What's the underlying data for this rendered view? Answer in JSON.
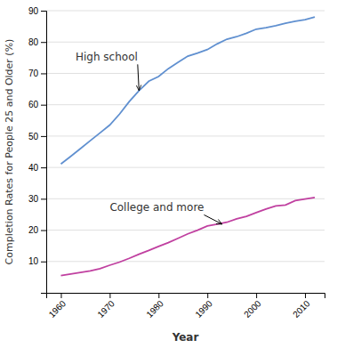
{
  "chart_data": {
    "type": "line",
    "xlabel": "Year",
    "ylabel": "Completion Rates for People 25 and Older (%)",
    "xlim": [
      1957,
      2014
    ],
    "ylim": [
      0,
      90
    ],
    "xticks": [
      1960,
      1970,
      1980,
      1990,
      2000,
      2010
    ],
    "yticks": [
      10,
      20,
      30,
      40,
      50,
      60,
      70,
      80,
      90
    ],
    "grid": true,
    "x": [
      1960,
      1962,
      1964,
      1966,
      1968,
      1970,
      1972,
      1974,
      1976,
      1978,
      1980,
      1982,
      1984,
      1986,
      1988,
      1990,
      1992,
      1994,
      1996,
      1998,
      2000,
      2002,
      2004,
      2006,
      2008,
      2010,
      2012
    ],
    "series": [
      {
        "color": "#6090d0",
        "values": [
          41.1,
          43.5,
          46.0,
          48.5,
          51.0,
          53.5,
          57.0,
          61.0,
          64.5,
          67.5,
          69.0,
          71.5,
          73.5,
          75.5,
          76.5,
          77.6,
          79.4,
          80.9,
          81.7,
          82.8,
          84.1,
          84.6,
          85.2,
          86.0,
          86.6,
          87.1,
          88.0
        ]
      },
      {
        "color": "#c040a0",
        "values": [
          5.5,
          6.0,
          6.5,
          7.0,
          7.7,
          8.8,
          9.8,
          11.0,
          12.3,
          13.5,
          14.8,
          16.0,
          17.4,
          18.8,
          20.0,
          21.3,
          21.9,
          22.5,
          23.6,
          24.4,
          25.6,
          26.7,
          27.7,
          28.0,
          29.4,
          29.9,
          30.4
        ]
      }
    ],
    "annotations": [
      {
        "text": "High school",
        "x": 1976,
        "y": 64.5,
        "text_x": 1963,
        "text_y": 75
      },
      {
        "text": "College and more",
        "x": 1993,
        "y": 21.9,
        "text_x": 1970,
        "text_y": 27
      }
    ]
  }
}
